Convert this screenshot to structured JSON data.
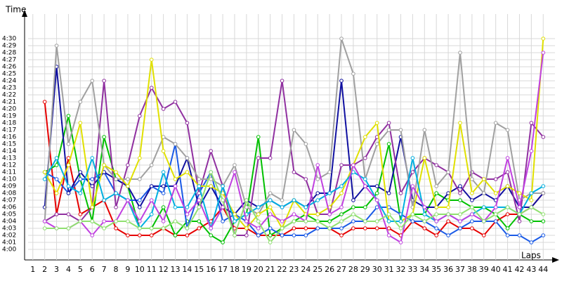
{
  "chart_data": {
    "type": "line",
    "y_title": "Time",
    "x_title": "Laps",
    "xlim": [
      0.6,
      44.4
    ],
    "ylim": [
      238.5,
      273.5
    ],
    "grid": true,
    "xticks": [
      1,
      2,
      3,
      4,
      5,
      6,
      7,
      8,
      9,
      10,
      11,
      12,
      13,
      14,
      15,
      16,
      17,
      18,
      19,
      20,
      21,
      22,
      23,
      24,
      25,
      26,
      27,
      28,
      29,
      30,
      31,
      32,
      33,
      34,
      35,
      36,
      37,
      38,
      39,
      40,
      41,
      42,
      43,
      44
    ],
    "yticks": [
      {
        "value": 240,
        "label": "4:00"
      },
      {
        "value": 241,
        "label": "4:01"
      },
      {
        "value": 242,
        "label": "4:02"
      },
      {
        "value": 243,
        "label": "4:03"
      },
      {
        "value": 244,
        "label": "4:04"
      },
      {
        "value": 245,
        "label": "4:05"
      },
      {
        "value": 246,
        "label": "4:06"
      },
      {
        "value": 247,
        "label": "4:07"
      },
      {
        "value": 248,
        "label": "4:08"
      },
      {
        "value": 249,
        "label": "4:09"
      },
      {
        "value": 250,
        "label": "4:10"
      },
      {
        "value": 251,
        "label": "4:11"
      },
      {
        "value": 252,
        "label": "4:12"
      },
      {
        "value": 253,
        "label": "4:13"
      },
      {
        "value": 254,
        "label": "4:14"
      },
      {
        "value": 255,
        "label": "4:15"
      },
      {
        "value": 256,
        "label": "4:16"
      },
      {
        "value": 257,
        "label": "4:17"
      },
      {
        "value": 258,
        "label": "4:18"
      },
      {
        "value": 259,
        "label": "4:19"
      },
      {
        "value": 260,
        "label": "4:20"
      },
      {
        "value": 261,
        "label": "4:21"
      },
      {
        "value": 262,
        "label": "4:22"
      },
      {
        "value": 263,
        "label": "4:23"
      },
      {
        "value": 264,
        "label": "4:24"
      },
      {
        "value": 265,
        "label": "4:25"
      },
      {
        "value": 266,
        "label": "4:26"
      },
      {
        "value": 267,
        "label": "4:27"
      },
      {
        "value": 268,
        "label": "4:28"
      },
      {
        "value": 269,
        "label": "4:29"
      },
      {
        "value": 270,
        "label": "4:30"
      }
    ],
    "x": [
      1,
      2,
      3,
      4,
      5,
      6,
      7,
      8,
      9,
      10,
      11,
      12,
      13,
      14,
      15,
      16,
      17,
      18,
      19,
      20,
      21,
      22,
      23,
      24,
      25,
      26,
      27,
      28,
      29,
      30,
      31,
      32,
      33,
      34,
      35,
      36,
      37,
      38,
      39,
      40,
      41,
      42,
      43,
      44
    ],
    "series": [
      {
        "color": "#e60000",
        "values": [
          null,
          261,
          245,
          253,
          245,
          246,
          247,
          243,
          242,
          242,
          242,
          243,
          242,
          242,
          243,
          244,
          246,
          243,
          243,
          242,
          242,
          242,
          243,
          243,
          243,
          243,
          242,
          243,
          243,
          243,
          243,
          242,
          244,
          243,
          242,
          244,
          243,
          243,
          242,
          244,
          245,
          245,
          246,
          248
        ]
      },
      {
        "color": "#00c000",
        "values": [
          null,
          251,
          252,
          259,
          250,
          244,
          256,
          250,
          249,
          243,
          243,
          246,
          242,
          244,
          244,
          242,
          241,
          244,
          245,
          256,
          242,
          243,
          244,
          245,
          244,
          244,
          245,
          246,
          246,
          248,
          255,
          244,
          245,
          245,
          248,
          247,
          247,
          246,
          246,
          245,
          243,
          245,
          244,
          244
        ]
      },
      {
        "color": "#1a5ae6",
        "values": [
          null,
          251,
          250,
          248,
          250,
          250,
          251,
          248,
          247,
          247,
          249,
          248,
          255,
          243,
          248,
          251,
          244,
          245,
          244,
          242,
          243,
          242,
          242,
          242,
          243,
          243,
          243,
          244,
          244,
          246,
          246,
          245,
          244,
          244,
          243,
          242,
          243,
          244,
          244,
          244,
          242,
          242,
          241,
          242
        ]
      },
      {
        "color": "#1010a0",
        "values": [
          null,
          246,
          266,
          248,
          251,
          249,
          251,
          250,
          249,
          246,
          249,
          249,
          249,
          253,
          246,
          249,
          246,
          245,
          247,
          246,
          247,
          246,
          247,
          246,
          248,
          248,
          264,
          247,
          249,
          249,
          248,
          256,
          247,
          246,
          246,
          248,
          249,
          247,
          248,
          247,
          249,
          246,
          246,
          248
        ]
      },
      {
        "color": "#9030a0",
        "values": [
          null,
          244,
          245,
          245,
          244,
          246,
          264,
          246,
          252,
          259,
          263,
          260,
          261,
          258,
          248,
          254,
          249,
          242,
          242,
          253,
          253,
          264,
          251,
          250,
          245,
          245,
          252,
          252,
          253,
          256,
          258,
          248,
          251,
          253,
          252,
          251,
          248,
          251,
          250,
          250,
          251,
          244,
          258,
          256
        ]
      },
      {
        "color": "#a0a0a0",
        "values": [
          null,
          244,
          269,
          255,
          261,
          264,
          252,
          250,
          250,
          250,
          252,
          256,
          255,
          253,
          250,
          250,
          249,
          252,
          246,
          245,
          248,
          247,
          257,
          255,
          250,
          251,
          270,
          265,
          250,
          255,
          257,
          257,
          246,
          257,
          249,
          251,
          268,
          250,
          248,
          258,
          257,
          247,
          248,
          248
        ]
      },
      {
        "color": "#e0e000",
        "values": [
          null,
          251,
          248,
          252,
          258,
          246,
          252,
          251,
          249,
          253,
          267,
          254,
          250,
          251,
          249,
          249,
          248,
          245,
          243,
          245,
          246,
          243,
          247,
          245,
          245,
          246,
          248,
          252,
          256,
          258,
          244,
          244,
          245,
          253,
          246,
          246,
          258,
          248,
          250,
          248,
          249,
          248,
          247,
          270
        ]
      },
      {
        "color": "#00b0e0",
        "values": [
          null,
          250,
          253,
          249,
          248,
          253,
          247,
          248,
          247,
          243,
          245,
          251,
          246,
          246,
          249,
          243,
          249,
          244,
          245,
          246,
          247,
          246,
          247,
          246,
          247,
          248,
          249,
          251,
          250,
          247,
          244,
          244,
          253,
          245,
          244,
          245,
          244,
          245,
          246,
          246,
          246,
          245,
          248,
          249
        ]
      },
      {
        "color": "#c040e0",
        "values": [
          null,
          244,
          243,
          243,
          244,
          242,
          244,
          244,
          247,
          244,
          247,
          244,
          249,
          245,
          247,
          243,
          246,
          251,
          244,
          243,
          245,
          244,
          245,
          244,
          252,
          245,
          246,
          252,
          249,
          247,
          242,
          241,
          249,
          246,
          244,
          245,
          244,
          245,
          244,
          246,
          253,
          246,
          254,
          268
        ]
      },
      {
        "color": "#90e070",
        "values": [
          null,
          243,
          243,
          243,
          244,
          244,
          243,
          244,
          244,
          243,
          243,
          243,
          244,
          243,
          246,
          251,
          247,
          242,
          247,
          244,
          241,
          243,
          244,
          244,
          244,
          243,
          244,
          245,
          244,
          244,
          245,
          243,
          245,
          244,
          245,
          245,
          245,
          246,
          244,
          245,
          246,
          245,
          246,
          245
        ]
      }
    ]
  }
}
